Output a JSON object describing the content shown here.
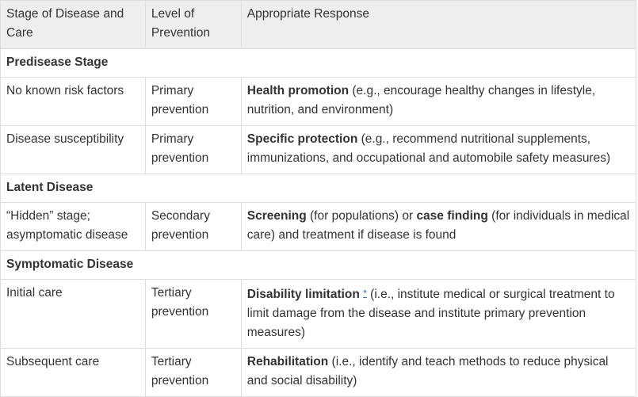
{
  "table": {
    "headers": [
      "Stage of Disease and Care",
      "Level of Prevention",
      "Appropriate Response"
    ],
    "sections": [
      {
        "title": "Predisease Stage",
        "rows": [
          {
            "stage": "No known risk factors",
            "level": "Primary prevention",
            "response_bold": "Health promotion",
            "response_rest": " (e.g., encourage healthy changes in lifestyle, nutrition, and environment)"
          },
          {
            "stage": "Disease susceptibility",
            "level": "Primary prevention",
            "response_bold": "Specific protection",
            "response_rest": " (e.g., recommend nutritional supplements, immunizations, and occupational and automobile safety measures)"
          }
        ]
      },
      {
        "title": "Latent Disease",
        "rows": [
          {
            "stage": "“Hidden” stage; asymptomatic disease",
            "level": "Secondary prevention",
            "response_bold": "Screening",
            "response_mid": " (for populations) or ",
            "response_bold2": "case finding",
            "response_rest": " (for individuals in medical care) and treatment if disease is found"
          }
        ]
      },
      {
        "title": "Symptomatic Disease",
        "rows": [
          {
            "stage": "Initial care",
            "level": "Tertiary prevention",
            "response_bold": "Disability limitation",
            "footnote": "*",
            "response_rest": " (i.e., institute medical or surgical treatment to limit damage from the disease and institute primary prevention measures)"
          },
          {
            "stage": "Subsequent care",
            "level": "Tertiary prevention",
            "response_bold": "Rehabilitation",
            "response_rest": " (i.e., identify and teach methods to reduce physical and social disability)"
          }
        ]
      }
    ]
  }
}
